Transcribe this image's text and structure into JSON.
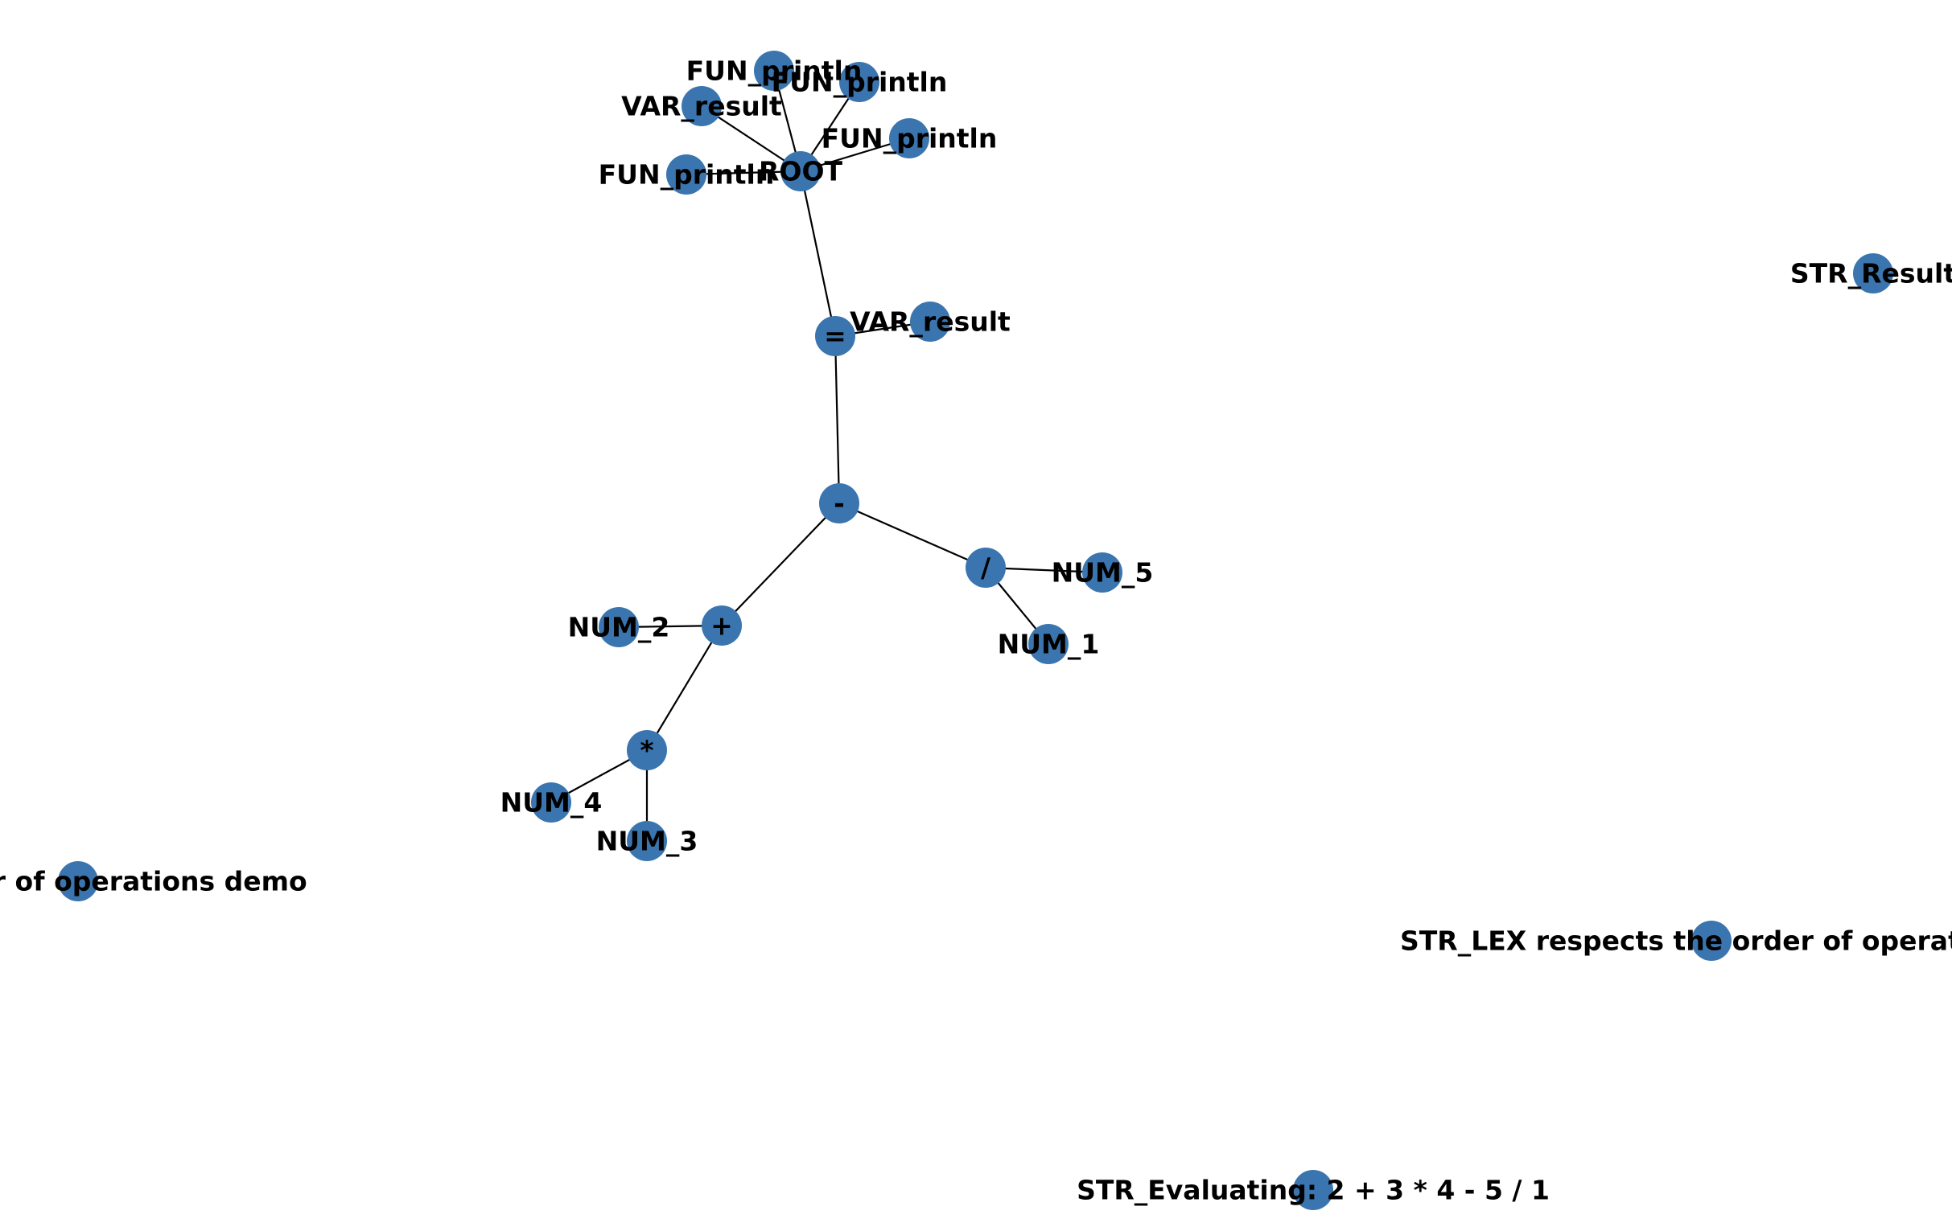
{
  "style": {
    "node_color": "#3b75af",
    "edge_color": "#000000",
    "label_color": "#000000"
  },
  "graph": {
    "nodes": [
      {
        "id": "root",
        "label": "ROOT"
      },
      {
        "id": "fun1",
        "label": "FUN_println"
      },
      {
        "id": "fun2",
        "label": "FUN_println"
      },
      {
        "id": "fun3",
        "label": "FUN_println"
      },
      {
        "id": "fun4",
        "label": "FUN_println"
      },
      {
        "id": "var1",
        "label": "VAR_result"
      },
      {
        "id": "assign",
        "label": "="
      },
      {
        "id": "var2",
        "label": "VAR_result"
      },
      {
        "id": "minus",
        "label": "-"
      },
      {
        "id": "div",
        "label": "/"
      },
      {
        "id": "num5",
        "label": "NUM_5"
      },
      {
        "id": "num1",
        "label": "NUM_1"
      },
      {
        "id": "plus",
        "label": "+"
      },
      {
        "id": "num2",
        "label": "NUM_2"
      },
      {
        "id": "mul",
        "label": "*"
      },
      {
        "id": "num4",
        "label": "NUM_4"
      },
      {
        "id": "num3",
        "label": "NUM_3"
      },
      {
        "id": "str_result",
        "label": "STR_Result"
      },
      {
        "id": "str_demo",
        "label": "STR_Order of operations demo"
      },
      {
        "id": "str_lex",
        "label": "STR_LEX respects the order of operations"
      },
      {
        "id": "str_eval",
        "label": "STR_Evaluating: 2 + 3 * 4 - 5 / 1"
      }
    ],
    "edges": [
      [
        "root",
        "fun1"
      ],
      [
        "root",
        "fun2"
      ],
      [
        "root",
        "fun3"
      ],
      [
        "root",
        "fun4"
      ],
      [
        "root",
        "var1"
      ],
      [
        "root",
        "assign"
      ],
      [
        "assign",
        "var2"
      ],
      [
        "assign",
        "minus"
      ],
      [
        "minus",
        "div"
      ],
      [
        "minus",
        "plus"
      ],
      [
        "div",
        "num5"
      ],
      [
        "div",
        "num1"
      ],
      [
        "plus",
        "num2"
      ],
      [
        "plus",
        "mul"
      ],
      [
        "mul",
        "num4"
      ],
      [
        "mul",
        "num3"
      ]
    ]
  }
}
